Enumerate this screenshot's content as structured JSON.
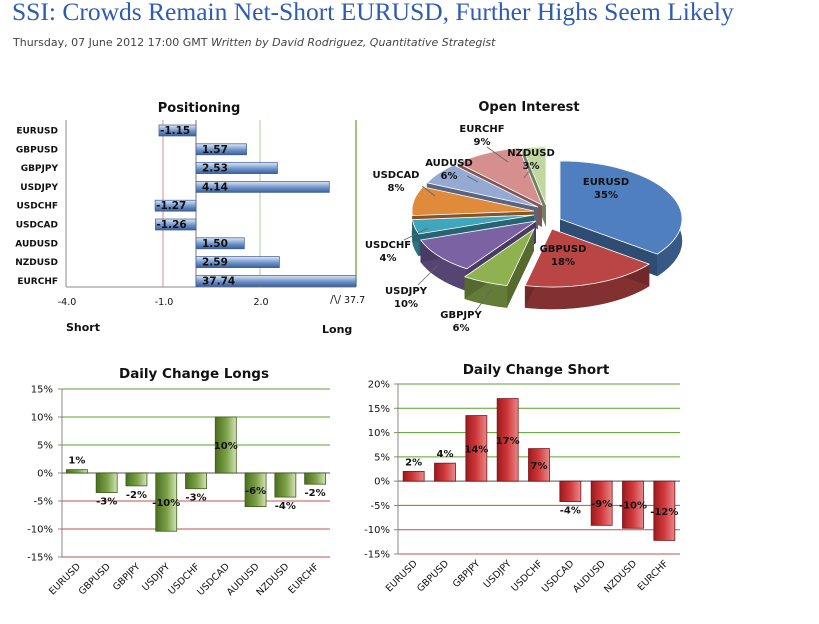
{
  "article": {
    "headline": "SSI: Crowds Remain Net-Short EURUSD, Further Highs Seem Likely",
    "dateline": "Thursday, 07 June 2012 17:00 GMT",
    "author": "Written by David Rodriguez, Quantitative Strategist"
  },
  "colors": {
    "headline": "#2f5cb3",
    "bar_blue": "#4a72b5",
    "bar_green": "#5f8a2c",
    "bar_red": "#c0282c",
    "zero_line_red": "#c0504d",
    "long_line_green": "#5aa02c"
  },
  "chart_data": [
    {
      "id": "positioning",
      "type": "bar",
      "orientation": "horizontal",
      "title": "Positioning",
      "categories": [
        "EURUSD",
        "GBPUSD",
        "GBPJPY",
        "USDJPY",
        "USDCHF",
        "USDCAD",
        "AUDUSD",
        "NZDUSD",
        "EURCHF"
      ],
      "values": [
        -1.15,
        1.57,
        2.53,
        4.14,
        -1.27,
        -1.26,
        1.5,
        2.59,
        37.74
      ],
      "value_labels": [
        "-1.15",
        "1.57",
        "2.53",
        "4.14",
        "-1.27",
        "-1.26",
        "1.50",
        "2.59",
        "37.74"
      ],
      "x_ticks": [
        "-4.0",
        "-1.0",
        "2.0"
      ],
      "axis_break_label": "37.7",
      "left_label": "Short",
      "right_label": "Long"
    },
    {
      "id": "open_interest",
      "type": "pie",
      "title": "Open Interest",
      "slices": [
        {
          "label": "EURUSD",
          "value": 35,
          "pct": "35%",
          "color": "#4f7fbe"
        },
        {
          "label": "GBPUSD",
          "value": 18,
          "pct": "18%",
          "color": "#b94545"
        },
        {
          "label": "GBPJPY",
          "value": 6,
          "pct": "6%",
          "color": "#8fb14f"
        },
        {
          "label": "USDJPY",
          "value": 10,
          "pct": "10%",
          "color": "#7b62a3"
        },
        {
          "label": "USDCHF",
          "value": 4,
          "pct": "4%",
          "color": "#3fa6bc"
        },
        {
          "label": "USDCAD",
          "value": 8,
          "pct": "8%",
          "color": "#e08a3c"
        },
        {
          "label": "AUDUSD",
          "value": 6,
          "pct": "6%",
          "color": "#94a9d3"
        },
        {
          "label": "EURCHF",
          "value": 9,
          "pct": "9%",
          "color": "#d58f8e"
        },
        {
          "label": "NZDUSD",
          "value": 3,
          "pct": "3%",
          "color": "#c0d7a0"
        }
      ]
    },
    {
      "id": "daily_change_longs",
      "type": "bar",
      "title": "Daily Change Longs",
      "categories": [
        "EURUSD",
        "GBPUSD",
        "GBPJPY",
        "USDJPY",
        "USDCHF",
        "USDCAD",
        "AUDUSD",
        "NZDUSD",
        "EURCHF"
      ],
      "values": [
        0.6,
        -3.5,
        -2.3,
        -10.4,
        -2.8,
        10.0,
        -6.0,
        -4.3,
        -2.0
      ],
      "value_labels": [
        "1%",
        "-3%",
        "-2%",
        "-10%",
        "-3%",
        "10%",
        "-6%",
        "-4%",
        "-2%"
      ],
      "y_ticks": [
        "15%",
        "10%",
        "5%",
        "0%",
        "-5%",
        "-10%",
        "-15%"
      ],
      "ylim": [
        -15,
        15
      ]
    },
    {
      "id": "daily_change_short",
      "type": "bar",
      "title": "Daily Change Short",
      "categories": [
        "EURUSD",
        "GBPUSD",
        "GBPJPY",
        "USDJPY",
        "USDCHF",
        "USDCAD",
        "AUDUSD",
        "NZDUSD",
        "EURCHF"
      ],
      "values": [
        2.0,
        3.7,
        13.5,
        17.0,
        6.7,
        -4.2,
        -9.1,
        -9.7,
        -12.2
      ],
      "value_labels": [
        "2%",
        "4%",
        "14%",
        "17%",
        "7%",
        "-4%",
        "-9%",
        "-10%",
        "-12%"
      ],
      "y_ticks": [
        "20%",
        "15%",
        "10%",
        "5%",
        "0%",
        "-5%",
        "-10%",
        "-15%"
      ],
      "ylim": [
        -15,
        20
      ]
    }
  ]
}
